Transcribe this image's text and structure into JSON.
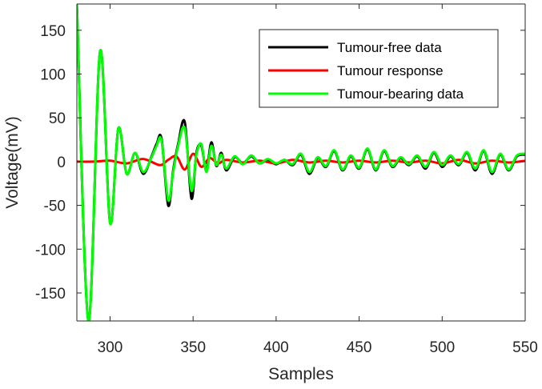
{
  "chart_data": {
    "type": "line",
    "xlabel": "Samples",
    "ylabel": "Voltage(mV)",
    "xlim": [
      280,
      550
    ],
    "ylim": [
      -182,
      180
    ],
    "xticks": [
      300,
      350,
      400,
      450,
      500,
      550
    ],
    "yticks": [
      -150,
      -100,
      -50,
      0,
      50,
      100,
      150
    ],
    "grid": false,
    "legend_position": "top-right",
    "series": [
      {
        "name": "Tumour-free data",
        "color": "#000000",
        "x": [
          280,
          287,
          294,
          300,
          305,
          310,
          315,
          320,
          325,
          328,
          331,
          335,
          338,
          341,
          345,
          349,
          352,
          355,
          358,
          361,
          364,
          367,
          370,
          375,
          380,
          385,
          390,
          395,
          400,
          405,
          410,
          415,
          420,
          425,
          430,
          435,
          440,
          445,
          450,
          455,
          460,
          465,
          470,
          475,
          480,
          485,
          490,
          495,
          500,
          505,
          510,
          515,
          520,
          525,
          530,
          535,
          540,
          545,
          550
        ],
        "y": [
          180,
          -182,
          126,
          -70,
          38,
          -14,
          10,
          -14,
          6,
          20,
          26,
          -50,
          -10,
          20,
          45,
          -42,
          10,
          18,
          -10,
          22,
          -5,
          10,
          -10,
          5,
          -2,
          6,
          -2,
          2,
          -3,
          2,
          -4,
          8,
          -14,
          4,
          -6,
          12,
          -10,
          6,
          -8,
          14,
          -10,
          12,
          -6,
          4,
          -4,
          6,
          -8,
          10,
          -6,
          6,
          -4,
          10,
          -10,
          12,
          -14,
          8,
          -10,
          6,
          8
        ]
      },
      {
        "name": "Tumour response",
        "color": "#ff0000",
        "x": [
          280,
          290,
          300,
          310,
          320,
          330,
          335,
          340,
          345,
          350,
          355,
          360,
          365,
          370,
          380,
          390,
          400,
          410,
          420,
          430,
          440,
          450,
          460,
          470,
          480,
          490,
          500,
          510,
          520,
          530,
          540,
          550
        ],
        "y": [
          0,
          0,
          1,
          -2,
          3,
          -4,
          2,
          6,
          -9,
          9,
          -6,
          4,
          -2,
          2,
          -1,
          1,
          -2,
          2,
          -1,
          1,
          -1,
          1,
          -1,
          1,
          -1,
          1,
          -2,
          2,
          -2,
          1,
          -1,
          1
        ]
      },
      {
        "name": "Tumour-bearing data",
        "color": "#00ff00",
        "x": [
          280,
          287,
          294,
          300,
          305,
          310,
          315,
          320,
          325,
          328,
          331,
          335,
          338,
          341,
          345,
          349,
          352,
          355,
          358,
          361,
          364,
          367,
          370,
          375,
          380,
          385,
          390,
          395,
          400,
          405,
          410,
          415,
          420,
          425,
          430,
          435,
          440,
          445,
          450,
          455,
          460,
          465,
          470,
          475,
          480,
          485,
          490,
          495,
          500,
          505,
          510,
          515,
          520,
          525,
          530,
          535,
          540,
          545,
          550
        ],
        "y": [
          180,
          -182,
          126,
          -70,
          38,
          -14,
          10,
          -12,
          5,
          18,
          24,
          -44,
          -12,
          18,
          38,
          -33,
          8,
          20,
          -12,
          18,
          -4,
          8,
          -8,
          6,
          -3,
          7,
          -2,
          3,
          -2,
          2,
          -3,
          9,
          -12,
          5,
          -5,
          13,
          -9,
          7,
          -7,
          15,
          -9,
          13,
          -5,
          5,
          -3,
          7,
          -6,
          11,
          -4,
          7,
          -3,
          11,
          -8,
          13,
          -12,
          9,
          -9,
          7,
          9
        ]
      }
    ]
  }
}
